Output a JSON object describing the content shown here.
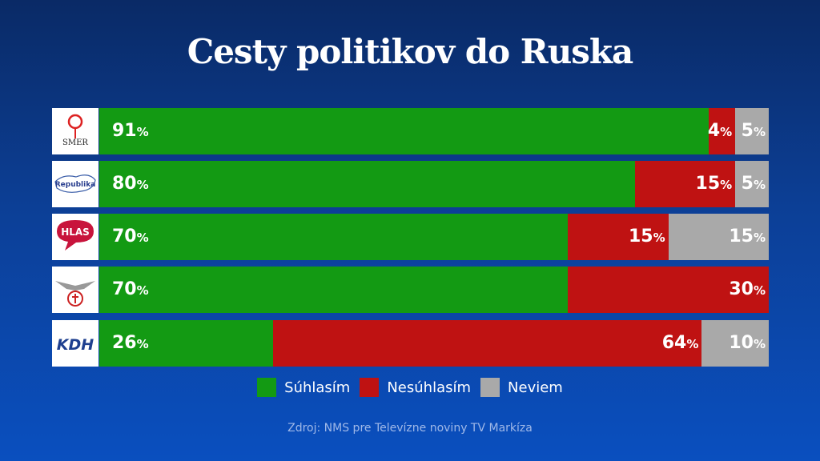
{
  "chart_data": {
    "type": "bar",
    "orientation": "horizontal",
    "stacked": true,
    "title": "Cesty politikov do Ruska",
    "unit": "%",
    "xlim": [
      0,
      100
    ],
    "categories": [
      "SMER",
      "Republika",
      "HLAS",
      "SNS",
      "KDH"
    ],
    "series": [
      {
        "name": "Súhlasím",
        "color": "#139a13",
        "values": [
          91,
          80,
          70,
          70,
          26
        ]
      },
      {
        "name": "Nesúhlasím",
        "color": "#bf1212",
        "values": [
          4,
          15,
          15,
          30,
          64
        ]
      },
      {
        "name": "Neviem",
        "color": "#a9a9a9",
        "values": [
          5,
          5,
          15,
          0,
          10
        ]
      }
    ],
    "legend_position": "bottom",
    "grid": false
  },
  "logos": [
    {
      "text": "SMER",
      "icon": "rose-icon"
    },
    {
      "text": "Republika",
      "icon": "slovakia-map-icon"
    },
    {
      "text": "HLAS",
      "icon": "speech-bubble-icon"
    },
    {
      "text": "",
      "icon": "eagle-emblem-icon"
    },
    {
      "text": "KDH",
      "icon": "kdh-logo-icon"
    }
  ],
  "source": "Zdroj: NMS pre Televízne noviny TV Markíza"
}
